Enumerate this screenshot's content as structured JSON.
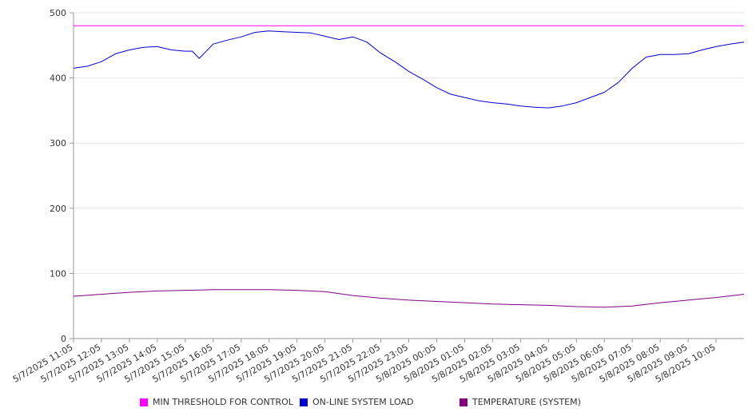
{
  "chart_data": {
    "type": "line",
    "title": "",
    "xlabel": "",
    "ylabel": "",
    "ylim": [
      0,
      500
    ],
    "yticks": [
      "0",
      "100",
      "200",
      "300",
      "400",
      "500"
    ],
    "grid": "horizontal",
    "legend_position": "bottom",
    "x_tick_labels": [
      "5/7/2025 11:05",
      "5/7/2025 12:05",
      "5/7/2025 13:05",
      "5/7/2025 14:05",
      "5/7/2025 15:05",
      "5/7/2025 16:05",
      "5/7/2025 17:05",
      "5/7/2025 18:05",
      "5/7/2025 19:05",
      "5/7/2025 20:05",
      "5/7/2025 21:05",
      "5/7/2025 22:05",
      "5/7/2025 23:05",
      "5/8/2025 00:05",
      "5/8/2025 01:05",
      "5/8/2025 02:05",
      "5/8/2025 03:05",
      "5/8/2025 04:05",
      "5/8/2025 05:05",
      "5/8/2025 06:05",
      "5/8/2025 07:05",
      "5/8/2025 08:05",
      "5/8/2025 09:05",
      "5/8/2025 10:05"
    ],
    "x_start": "5/7/2025 11:05",
    "x_end": "5/8/2025 11:05",
    "series": [
      {
        "name": "MIN THRESHOLD FOR CONTROL",
        "color": "#ff00ff",
        "times": [
          "5/7/2025 11:05",
          "5/8/2025 11:05"
        ],
        "values": [
          480,
          480
        ]
      },
      {
        "name": "ON-LINE SYSTEM LOAD",
        "color": "#0000cc",
        "times": [
          "5/7/2025 11:05",
          "5/7/2025 11:35",
          "5/7/2025 12:05",
          "5/7/2025 12:35",
          "5/7/2025 13:05",
          "5/7/2025 13:35",
          "5/7/2025 14:05",
          "5/7/2025 14:35",
          "5/7/2025 15:05",
          "5/7/2025 15:20",
          "5/7/2025 15:35",
          "5/7/2025 16:05",
          "5/7/2025 16:35",
          "5/7/2025 17:05",
          "5/7/2025 17:35",
          "5/7/2025 18:05",
          "5/7/2025 18:35",
          "5/7/2025 19:05",
          "5/7/2025 19:35",
          "5/7/2025 20:05",
          "5/7/2025 20:35",
          "5/7/2025 21:05",
          "5/7/2025 21:35",
          "5/7/2025 22:05",
          "5/7/2025 22:35",
          "5/7/2025 23:05",
          "5/7/2025 23:35",
          "5/8/2025 00:05",
          "5/8/2025 00:35",
          "5/8/2025 01:05",
          "5/8/2025 01:35",
          "5/8/2025 02:05",
          "5/8/2025 02:35",
          "5/8/2025 03:05",
          "5/8/2025 03:35",
          "5/8/2025 04:05",
          "5/8/2025 04:35",
          "5/8/2025 05:05",
          "5/8/2025 05:35",
          "5/8/2025 06:05",
          "5/8/2025 06:35",
          "5/8/2025 07:05",
          "5/8/2025 07:35",
          "5/8/2025 08:05",
          "5/8/2025 08:35",
          "5/8/2025 09:05",
          "5/8/2025 09:35",
          "5/8/2025 10:05",
          "5/8/2025 10:35",
          "5/8/2025 11:05"
        ],
        "values": [
          415,
          418,
          425,
          437,
          443,
          447,
          448,
          443,
          441,
          441,
          430,
          452,
          458,
          463,
          470,
          472,
          471,
          470,
          469,
          464,
          459,
          463,
          455,
          438,
          425,
          410,
          398,
          385,
          375,
          370,
          365,
          362,
          360,
          357,
          355,
          354,
          357,
          362,
          370,
          378,
          393,
          415,
          432,
          436,
          436,
          437,
          443,
          448,
          452,
          455
        ]
      },
      {
        "name": "TEMPERATURE (SYSTEM)",
        "color": "#800080",
        "times": [
          "5/7/2025 11:05",
          "5/7/2025 12:05",
          "5/7/2025 13:05",
          "5/7/2025 14:05",
          "5/7/2025 15:05",
          "5/7/2025 16:05",
          "5/7/2025 17:05",
          "5/7/2025 18:05",
          "5/7/2025 19:05",
          "5/7/2025 20:05",
          "5/7/2025 21:05",
          "5/7/2025 22:05",
          "5/7/2025 23:05",
          "5/8/2025 00:05",
          "5/8/2025 01:05",
          "5/8/2025 02:05",
          "5/8/2025 03:05",
          "5/8/2025 04:05",
          "5/8/2025 05:05",
          "5/8/2025 06:05",
          "5/8/2025 07:05",
          "5/8/2025 08:05",
          "5/8/2025 09:05",
          "5/8/2025 10:05",
          "5/8/2025 11:05"
        ],
        "values": [
          65,
          68,
          71,
          73,
          74,
          75,
          75,
          75,
          74,
          72,
          66,
          62,
          59,
          57,
          55,
          53,
          52,
          51,
          49,
          48,
          50,
          55,
          59,
          63,
          68
        ]
      }
    ]
  }
}
